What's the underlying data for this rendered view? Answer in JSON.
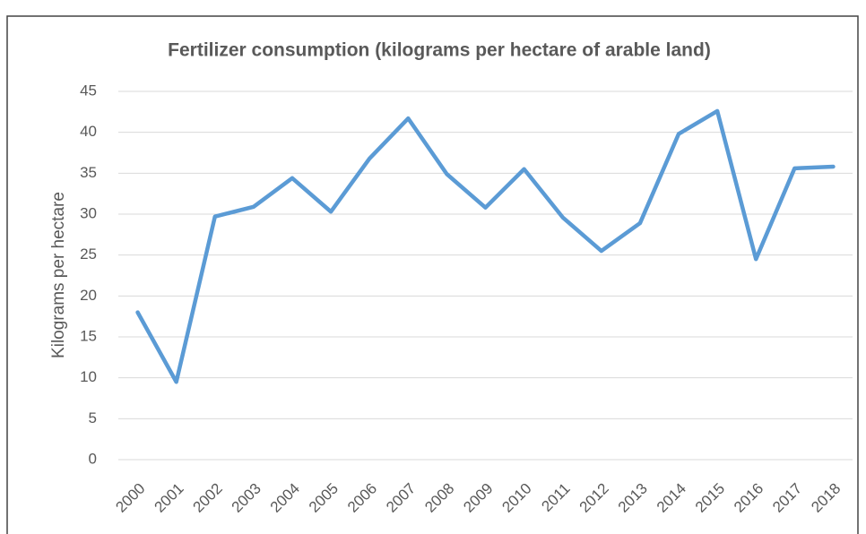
{
  "chart_data": {
    "type": "line",
    "title": "Fertilizer consumption (kilograms per hectare of arable land)",
    "ylabel": "Kilograms per hectare",
    "categories": [
      "2000",
      "2001",
      "2002",
      "2003",
      "2004",
      "2005",
      "2006",
      "2007",
      "2008",
      "2009",
      "2010",
      "2011",
      "2012",
      "2013",
      "2014",
      "2015",
      "2016",
      "2017",
      "2018"
    ],
    "series": [
      {
        "name": "Fertilizer consumption",
        "color": "#5b9bd5",
        "values": [
          18,
          9.5,
          29.7,
          30.9,
          34.4,
          30.3,
          36.8,
          41.7,
          34.9,
          30.8,
          35.5,
          29.6,
          25.5,
          28.9,
          39.8,
          42.6,
          24.5,
          35.6,
          35.8
        ]
      }
    ],
    "ylim": [
      0,
      45
    ],
    "yticks": [
      0,
      5,
      10,
      15,
      20,
      25,
      30,
      35,
      40,
      45
    ],
    "grid": true
  }
}
